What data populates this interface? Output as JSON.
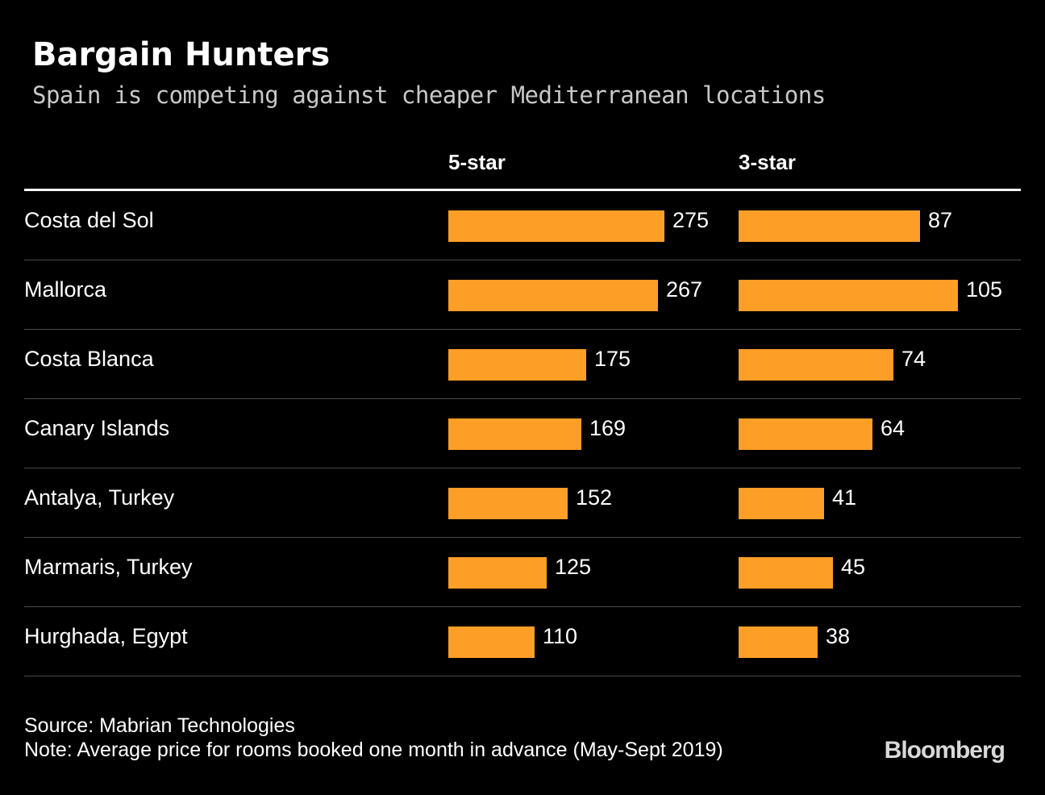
{
  "title": "Bargain Hunters",
  "subtitle": "Spain is competing against cheaper Mediterranean locations",
  "source": "Source: Mabrian Technologies",
  "note": "Note: Average price for rooms booked one month in advance (May-Sept 2019)",
  "brand": "Bloomberg",
  "colors": {
    "background": "#000000",
    "bar": "#fd9e27",
    "text": "#ffffff",
    "subtitle": "#c8c8c8",
    "rule": "#4a4a4a"
  },
  "chart_data": {
    "type": "bar",
    "orientation": "horizontal",
    "categories": [
      "Costa del Sol",
      "Mallorca",
      "Costa Blanca",
      "Canary Islands",
      "Antalya, Turkey",
      "Marmaris, Turkey",
      "Hurghada, Egypt"
    ],
    "series": [
      {
        "name": "5-star",
        "values": [
          275,
          267,
          175,
          169,
          152,
          125,
          110
        ],
        "xlim": [
          0,
          275
        ]
      },
      {
        "name": "3-star",
        "values": [
          87,
          105,
          74,
          64,
          41,
          45,
          38
        ],
        "xlim": [
          0,
          105
        ]
      }
    ],
    "title": "Bargain Hunters",
    "subtitle": "Spain is competing against cheaper Mediterranean locations",
    "data_labels": true,
    "grid": false,
    "legend": "column headers above each panel"
  }
}
